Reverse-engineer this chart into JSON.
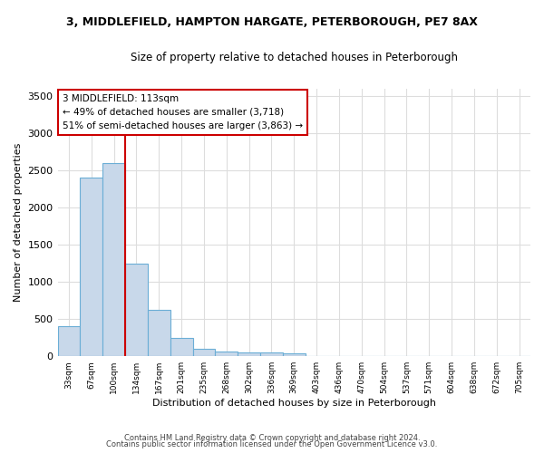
{
  "title1": "3, MIDDLEFIELD, HAMPTON HARGATE, PETERBOROUGH, PE7 8AX",
  "title2": "Size of property relative to detached houses in Peterborough",
  "xlabel": "Distribution of detached houses by size in Peterborough",
  "ylabel": "Number of detached properties",
  "categories": [
    "33sqm",
    "67sqm",
    "100sqm",
    "134sqm",
    "167sqm",
    "201sqm",
    "235sqm",
    "268sqm",
    "302sqm",
    "336sqm",
    "369sqm",
    "403sqm",
    "436sqm",
    "470sqm",
    "504sqm",
    "537sqm",
    "571sqm",
    "604sqm",
    "638sqm",
    "672sqm",
    "705sqm"
  ],
  "values": [
    400,
    2400,
    2600,
    1250,
    625,
    250,
    100,
    60,
    55,
    50,
    35,
    0,
    0,
    0,
    0,
    0,
    0,
    0,
    0,
    0,
    0
  ],
  "bar_color": "#c8d8ea",
  "bar_edge_color": "#6baed6",
  "ylim": [
    0,
    3600
  ],
  "yticks": [
    0,
    500,
    1000,
    1500,
    2000,
    2500,
    3000,
    3500
  ],
  "annotation_line1": "3 MIDDLEFIELD: 113sqm",
  "annotation_line2": "← 49% of detached houses are smaller (3,718)",
  "annotation_line3": "51% of semi-detached houses are larger (3,863) →",
  "annotation_box_color": "#cc0000",
  "red_line_color": "#cc0000",
  "bg_color": "#ffffff",
  "plot_bg_color": "#ffffff",
  "grid_color": "#dddddd",
  "footer_line1": "Contains HM Land Registry data © Crown copyright and database right 2024.",
  "footer_line2": "Contains public sector information licensed under the Open Government Licence v3.0."
}
